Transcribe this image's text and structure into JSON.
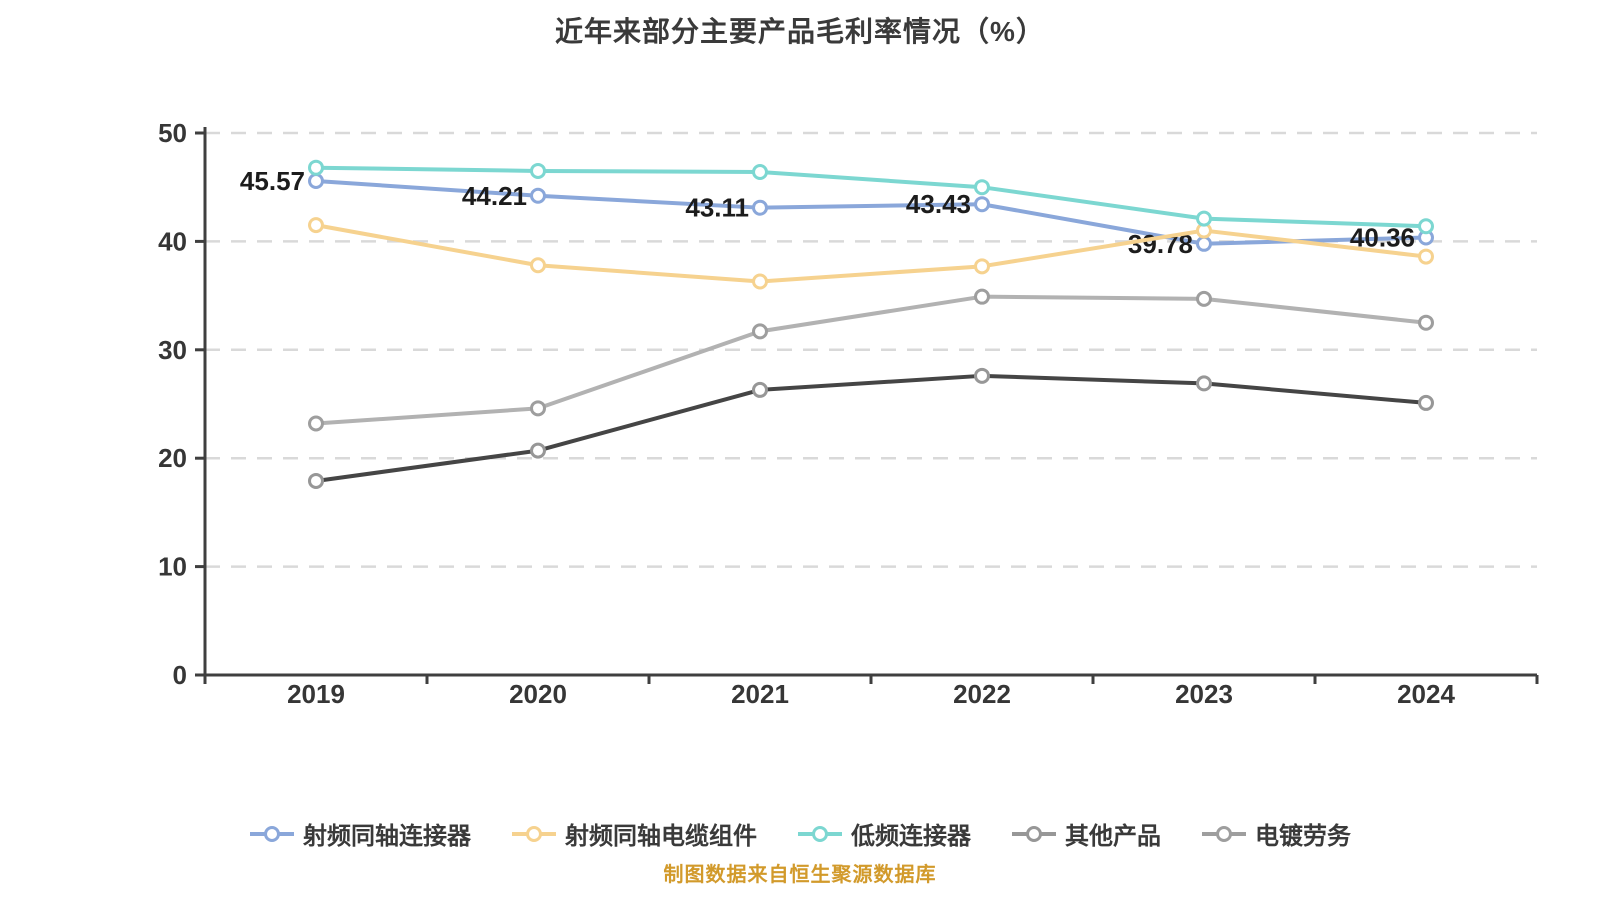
{
  "title": "近年来部分主要产品毛利率情况（%）",
  "footer": "制图数据来自恒生聚源数据库",
  "colors": {
    "axis": "#3f3f3f",
    "gridline": "#d9d9d9",
    "title_text": "#3a3a3a",
    "data_label": "#1c1c1c",
    "footer_text": "#d29a2b",
    "point_fill": "#ffffff"
  },
  "chart_data": {
    "type": "line",
    "title": "近年来部分主要产品毛利率情况（%）",
    "xlabel": "",
    "ylabel": "",
    "unit": "%",
    "categories": [
      "2019",
      "2020",
      "2021",
      "2022",
      "2023",
      "2024"
    ],
    "series": [
      {
        "name": "射频同轴连接器",
        "color": "#8aa7da",
        "values": [
          45.57,
          44.21,
          43.11,
          43.43,
          39.78,
          40.36
        ],
        "labels": [
          "45.57",
          "44.21",
          "43.11",
          "43.43",
          "39.78",
          "40.36"
        ]
      },
      {
        "name": "射频同轴电缆组件",
        "color": "#f6d28f",
        "values": [
          41.5,
          37.8,
          36.3,
          37.7,
          41.0,
          38.6
        ]
      },
      {
        "name": "低频连接器",
        "color": "#7cd7d1",
        "values": [
          46.8,
          46.5,
          46.4,
          45.0,
          42.1,
          41.4
        ]
      },
      {
        "name": "其他产品",
        "color": "#454545",
        "marker_color": "#979797",
        "values": [
          17.9,
          20.7,
          26.3,
          27.6,
          26.9,
          25.1
        ]
      },
      {
        "name": "电镀劳务",
        "color": "#b2b2b2",
        "marker_color": "#9e9e9e",
        "values": [
          23.2,
          24.6,
          31.7,
          34.9,
          34.7,
          32.5
        ]
      }
    ],
    "ylim": [
      0,
      50
    ],
    "yticks": [
      0,
      10,
      20,
      30,
      40,
      50
    ],
    "grid": "horizontal-dashed",
    "legend_position": "bottom"
  }
}
